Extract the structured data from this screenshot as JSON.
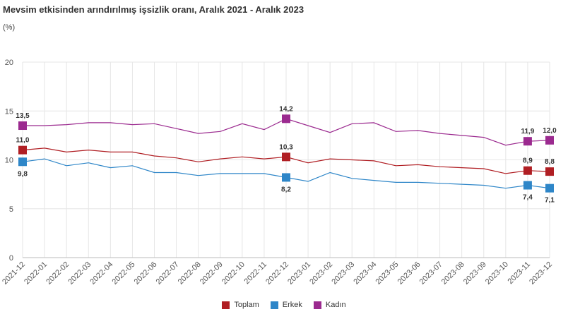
{
  "title": "Mevsim etkisinden arındırılmış işsizlik oranı, Aralık 2021 - Aralık 2023",
  "subtitle": "(%)",
  "chart_data": {
    "type": "line",
    "title": "Mevsim etkisinden arındırılmış işsizlik oranı, Aralık 2021 - Aralık 2023",
    "ylabel": "(%)",
    "xlabel": "",
    "ylim": [
      0,
      20
    ],
    "yticks": [
      "0",
      "5",
      "10",
      "15",
      "20"
    ],
    "grid": true,
    "legend_position": "bottom-center",
    "categories": [
      "2021-12",
      "2022-01",
      "2022-02",
      "2022-03",
      "2022-04",
      "2022-05",
      "2022-06",
      "2022-07",
      "2022-08",
      "2022-09",
      "2022-10",
      "2022-11",
      "2022-12",
      "2023-01",
      "2023-02",
      "2023-03",
      "2023-04",
      "2023-05",
      "2023-06",
      "2023-07",
      "2023-08",
      "2023-09",
      "2023-10",
      "2023-11",
      "2023-12"
    ],
    "series": [
      {
        "name": "Toplam",
        "color": "#b01e23",
        "values": [
          11.0,
          11.2,
          10.8,
          11.0,
          10.8,
          10.8,
          10.4,
          10.2,
          9.8,
          10.1,
          10.3,
          10.1,
          10.3,
          9.7,
          10.1,
          10.0,
          9.9,
          9.4,
          9.5,
          9.3,
          9.2,
          9.1,
          8.6,
          8.9,
          8.8
        ],
        "markers": [
          {
            "index": 0,
            "label": "11,0"
          },
          {
            "index": 12,
            "label": "10,3"
          },
          {
            "index": 23,
            "label": "8,9"
          },
          {
            "index": 24,
            "label": "8,8"
          }
        ]
      },
      {
        "name": "Erkek",
        "color": "#2e86c8",
        "values": [
          9.8,
          10.1,
          9.4,
          9.7,
          9.2,
          9.4,
          8.7,
          8.7,
          8.4,
          8.6,
          8.6,
          8.6,
          8.2,
          7.8,
          8.7,
          8.1,
          7.9,
          7.7,
          7.7,
          7.6,
          7.5,
          7.4,
          7.1,
          7.4,
          7.1
        ],
        "markers": [
          {
            "index": 0,
            "label": "9,8"
          },
          {
            "index": 12,
            "label": "8,2"
          },
          {
            "index": 23,
            "label": "7,4"
          },
          {
            "index": 24,
            "label": "7,1"
          }
        ]
      },
      {
        "name": "Kadın",
        "color": "#9b2a8f",
        "values": [
          13.5,
          13.5,
          13.6,
          13.8,
          13.8,
          13.6,
          13.7,
          13.2,
          12.7,
          12.9,
          13.7,
          13.1,
          14.2,
          13.5,
          12.8,
          13.7,
          13.8,
          12.9,
          13.0,
          12.7,
          12.5,
          12.3,
          11.5,
          11.9,
          12.0
        ],
        "markers": [
          {
            "index": 0,
            "label": "13,5"
          },
          {
            "index": 12,
            "label": "14,2"
          },
          {
            "index": 23,
            "label": "11,9"
          },
          {
            "index": 24,
            "label": "12,0"
          }
        ]
      }
    ]
  }
}
